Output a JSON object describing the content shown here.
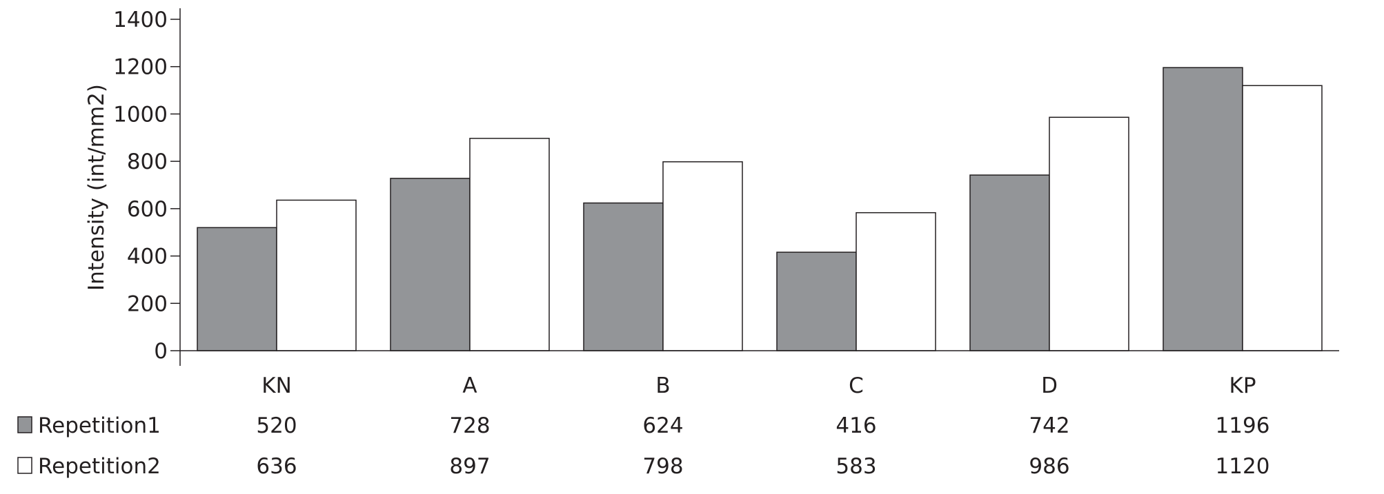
{
  "chart_data": {
    "type": "bar",
    "title": "",
    "xlabel": "",
    "ylabel": "Intensity (int/mm2)",
    "ylim": [
      0,
      1400
    ],
    "yticks": [
      0,
      200,
      400,
      600,
      800,
      1000,
      1200,
      1400
    ],
    "grid": false,
    "legend_placement": "bottom data table",
    "categories": [
      "KN",
      "A",
      "B",
      "C",
      "D",
      "KP"
    ],
    "series": [
      {
        "name": "Repetition1",
        "values": [
          520,
          728,
          624,
          416,
          742,
          1196
        ],
        "color": "#939598"
      },
      {
        "name": "Repetition2",
        "values": [
          636,
          897,
          798,
          583,
          986,
          1120
        ],
        "color": "#ffffff"
      }
    ]
  }
}
